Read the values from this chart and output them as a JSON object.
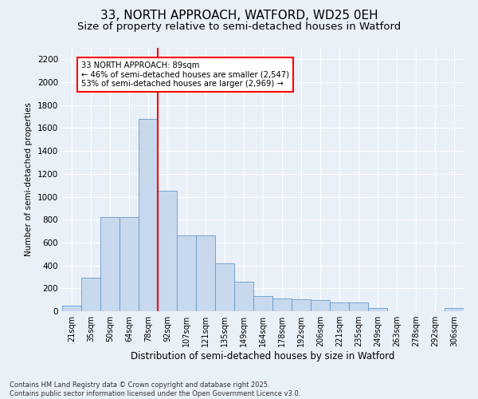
{
  "title1": "33, NORTH APPROACH, WATFORD, WD25 0EH",
  "title2": "Size of property relative to semi-detached houses in Watford",
  "xlabel": "Distribution of semi-detached houses by size in Watford",
  "ylabel": "Number of semi-detached properties",
  "bin_labels": [
    "21sqm",
    "35sqm",
    "50sqm",
    "64sqm",
    "78sqm",
    "92sqm",
    "107sqm",
    "121sqm",
    "135sqm",
    "149sqm",
    "164sqm",
    "178sqm",
    "192sqm",
    "206sqm",
    "221sqm",
    "235sqm",
    "249sqm",
    "263sqm",
    "278sqm",
    "292sqm",
    "306sqm"
  ],
  "bar_values": [
    50,
    295,
    820,
    820,
    1680,
    1050,
    660,
    660,
    420,
    255,
    130,
    110,
    105,
    100,
    80,
    80,
    30,
    0,
    0,
    0,
    30
  ],
  "bar_color": "#c8d8ed",
  "bar_edge_color": "#6699cc",
  "vline_color": "red",
  "annotation_title": "33 NORTH APPROACH: 89sqm",
  "annotation_line1": "← 46% of semi-detached houses are smaller (2,547)",
  "annotation_line2": "53% of semi-detached houses are larger (2,969) →",
  "annotation_box_color": "red",
  "ylim": [
    0,
    2300
  ],
  "yticks": [
    0,
    200,
    400,
    600,
    800,
    1000,
    1200,
    1400,
    1600,
    1800,
    2000,
    2200
  ],
  "footnote1": "Contains HM Land Registry data © Crown copyright and database right 2025.",
  "footnote2": "Contains public sector information licensed under the Open Government Licence v3.0.",
  "bg_color": "#eaf0f8",
  "grid_color": "#ffffff",
  "title_fontsize": 11,
  "subtitle_fontsize": 9.5
}
